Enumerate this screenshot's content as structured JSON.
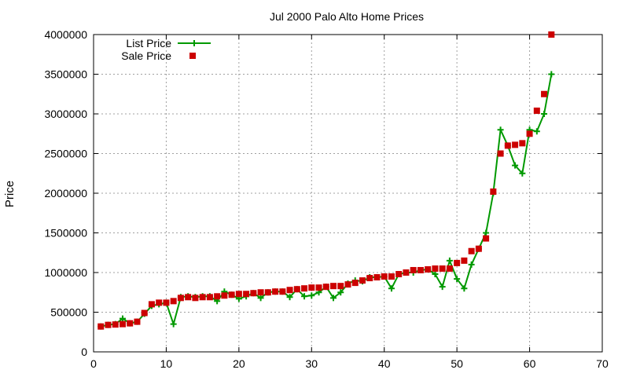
{
  "chart_data": {
    "type": "line",
    "title": "Jul 2000 Palo Alto Home Prices",
    "xlabel": "",
    "ylabel": "Price",
    "xlim": [
      0,
      70
    ],
    "ylim": [
      0,
      4000000
    ],
    "xticks": [
      0,
      10,
      20,
      30,
      40,
      50,
      60,
      70
    ],
    "yticks": [
      0,
      500000,
      1000000,
      1500000,
      2000000,
      2500000,
      3000000,
      3500000,
      4000000
    ],
    "grid": true,
    "legend_position": "top-left",
    "series": [
      {
        "name": "List Price",
        "style": "line-plus",
        "color": "#009900",
        "x": [
          1,
          2,
          3,
          4,
          5,
          6,
          7,
          8,
          9,
          10,
          11,
          12,
          13,
          14,
          15,
          16,
          17,
          18,
          19,
          20,
          21,
          22,
          23,
          24,
          25,
          26,
          27,
          28,
          29,
          30,
          31,
          32,
          33,
          34,
          35,
          36,
          37,
          38,
          39,
          40,
          41,
          42,
          43,
          44,
          45,
          46,
          47,
          48,
          49,
          50,
          51,
          52,
          53,
          54,
          55,
          56,
          57,
          58,
          59,
          60,
          61,
          62,
          63
        ],
        "values": [
          320000,
          340000,
          350000,
          420000,
          360000,
          380000,
          480000,
          580000,
          600000,
          620000,
          350000,
          690000,
          700000,
          690000,
          700000,
          700000,
          640000,
          760000,
          720000,
          670000,
          700000,
          740000,
          680000,
          750000,
          760000,
          760000,
          690000,
          790000,
          700000,
          710000,
          750000,
          820000,
          680000,
          750000,
          860000,
          900000,
          890000,
          940000,
          940000,
          950000,
          800000,
          980000,
          1000000,
          1000000,
          1030000,
          1040000,
          980000,
          820000,
          1150000,
          920000,
          800000,
          1100000,
          1300000,
          1500000,
          2000000,
          2800000,
          2600000,
          2350000,
          2250000,
          2800000,
          2780000,
          3000000,
          3500000
        ]
      },
      {
        "name": "Sale Price",
        "style": "square",
        "color": "#cc0000",
        "x": [
          1,
          2,
          3,
          4,
          5,
          6,
          7,
          8,
          9,
          10,
          11,
          12,
          13,
          14,
          15,
          16,
          17,
          18,
          19,
          20,
          21,
          22,
          23,
          24,
          25,
          26,
          27,
          28,
          29,
          30,
          31,
          32,
          33,
          34,
          35,
          36,
          37,
          38,
          39,
          40,
          41,
          42,
          43,
          44,
          45,
          46,
          47,
          48,
          49,
          50,
          51,
          52,
          53,
          54,
          55,
          56,
          57,
          58,
          59,
          60,
          61,
          62,
          63
        ],
        "values": [
          320000,
          340000,
          345000,
          350000,
          360000,
          380000,
          490000,
          600000,
          620000,
          620000,
          640000,
          680000,
          690000,
          680000,
          690000,
          690000,
          700000,
          710000,
          720000,
          730000,
          730000,
          740000,
          750000,
          750000,
          760000,
          760000,
          780000,
          790000,
          800000,
          810000,
          810000,
          820000,
          830000,
          830000,
          850000,
          870000,
          900000,
          930000,
          940000,
          950000,
          950000,
          980000,
          1000000,
          1030000,
          1030000,
          1040000,
          1050000,
          1050000,
          1050000,
          1120000,
          1150000,
          1270000,
          1300000,
          1430000,
          2020000,
          2500000,
          2600000,
          2610000,
          2630000,
          2750000,
          3040000,
          3250000,
          4000000
        ]
      }
    ]
  }
}
